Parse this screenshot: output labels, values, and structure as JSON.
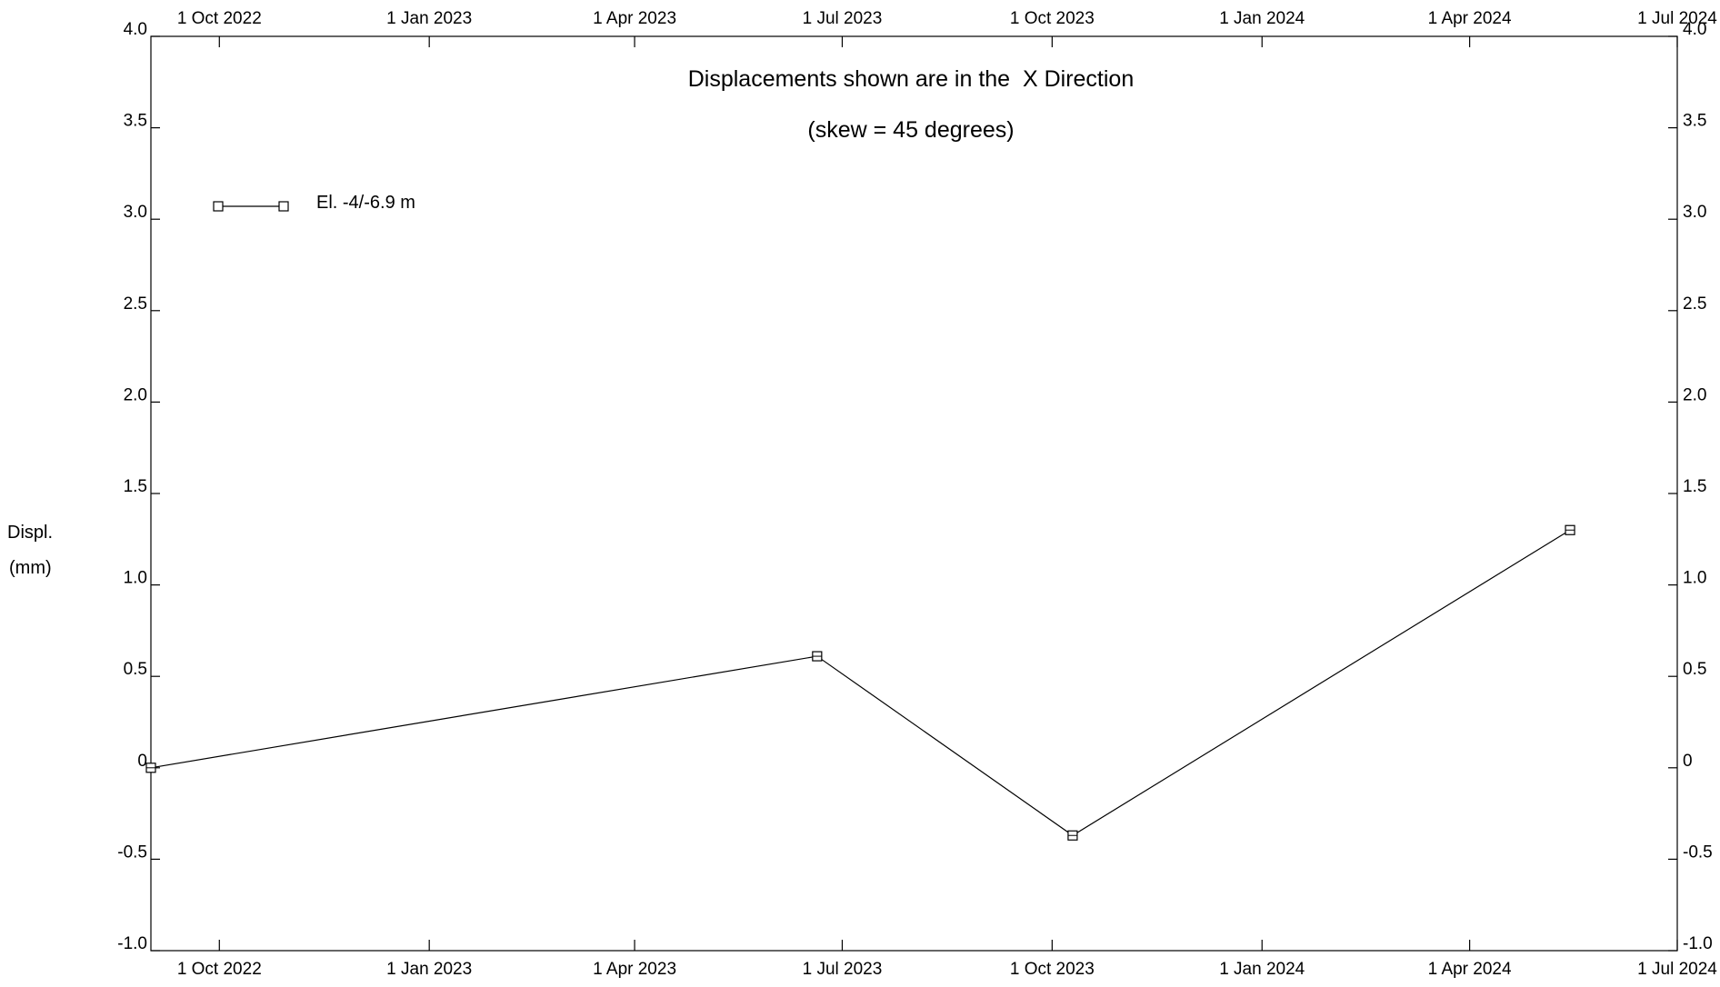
{
  "chart_data": {
    "type": "line",
    "title": "Displacements shown are in the  X Direction",
    "subtitle": "(skew = 45 degrees)",
    "ylabel_line1": "Displ.",
    "ylabel_line2": "(mm)",
    "xlabel": "",
    "xlim": [
      "2022-09-01",
      "2024-07-01"
    ],
    "ylim": [
      -1.0,
      4.0
    ],
    "grid": false,
    "legend_position": "top-left",
    "x_ticks": [
      {
        "date": "2022-10-01",
        "label": "1 Oct 2022"
      },
      {
        "date": "2023-01-01",
        "label": "1 Jan 2023"
      },
      {
        "date": "2023-04-01",
        "label": "1 Apr 2023"
      },
      {
        "date": "2023-07-01",
        "label": "1 Jul 2023"
      },
      {
        "date": "2023-10-01",
        "label": "1 Oct 2023"
      },
      {
        "date": "2024-01-01",
        "label": "1 Jan 2024"
      },
      {
        "date": "2024-04-01",
        "label": "1 Apr 2024"
      },
      {
        "date": "2024-07-01",
        "label": "1 Jul 2024"
      }
    ],
    "y_ticks": [
      {
        "value": 4.0,
        "label": "4.0"
      },
      {
        "value": 3.5,
        "label": "3.5"
      },
      {
        "value": 3.0,
        "label": "3.0"
      },
      {
        "value": 2.5,
        "label": "2.5"
      },
      {
        "value": 2.0,
        "label": "2.0"
      },
      {
        "value": 1.5,
        "label": "1.5"
      },
      {
        "value": 1.0,
        "label": "1.0"
      },
      {
        "value": 0.5,
        "label": "0.5"
      },
      {
        "value": 0,
        "label": "0"
      },
      {
        "value": -0.5,
        "label": "-0.5"
      },
      {
        "value": -1.0,
        "label": "-1.0"
      }
    ],
    "series": [
      {
        "name": "El. -4/-6.9 m",
        "marker": "square",
        "color": "#000000",
        "points": [
          {
            "x": "2022-09-01",
            "y": 0.0
          },
          {
            "x": "2023-06-20",
            "y": 0.61
          },
          {
            "x": "2023-10-10",
            "y": -0.37
          },
          {
            "x": "2024-05-15",
            "y": 1.3
          }
        ]
      }
    ]
  }
}
